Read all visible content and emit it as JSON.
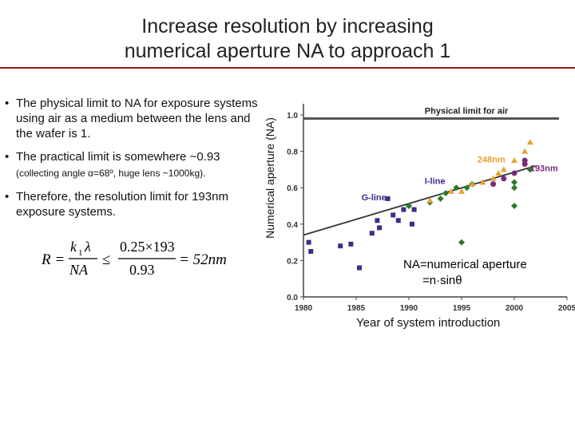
{
  "slide": {
    "title_line1": "Increase resolution by increasing",
    "title_line2": "numerical aperture NA to approach 1",
    "accent_color": "#8b1a1a"
  },
  "bullets": [
    {
      "text": "The physical limit to NA for exposure systems using air as a medium between the lens and the wafer is 1."
    },
    {
      "text": "The  practical limit is somewhere ~0.93"
    },
    {
      "text": "Therefore, the resolution limit for 193nm exposure systems."
    }
  ],
  "bullet_note": "(collecting angle α=68º, huge lens ~1000kg).",
  "formula": {
    "lhs": "R =",
    "k": "k",
    "k_sub": "1",
    "lambda": "λ",
    "denom": "NA",
    "leq": "≤",
    "num": "0.25×193",
    "den2": "0.93",
    "result": "= 52nm"
  },
  "y_axis_label": "Numerical aperture (NA)",
  "x_axis_label": "Year of system introduction",
  "na_note_line1": "NA=numerical aperture",
  "na_note_line2": "=n·sinθ",
  "chart_data": {
    "type": "scatter",
    "title": "",
    "xlabel": "Year of system introduction",
    "ylabel": "Numerical aperture (NA)",
    "xlim": [
      1980,
      2005
    ],
    "ylim": [
      0.0,
      1.0
    ],
    "x_ticks": [
      "1980",
      "1985",
      "1990",
      "1995",
      "2000",
      "2005"
    ],
    "y_ticks": [
      "0.0",
      "0.2",
      "0.4",
      "0.6",
      "0.8",
      "1.0"
    ],
    "grid": false,
    "physical_limit": {
      "label": "Physical limit for air",
      "y": 0.98
    },
    "trend_line": {
      "x": [
        1980,
        2002
      ],
      "y": [
        0.34,
        0.72
      ]
    },
    "series": [
      {
        "name": "G-line",
        "marker": "square",
        "color": "#3a2f8a",
        "x": [
          1980.5,
          1980.7,
          1983.5,
          1984.5,
          1985.3,
          1986.5,
          1987.0,
          1987.2,
          1988.0,
          1988.5,
          1989.0,
          1989.5,
          1990.3,
          1990.5
        ],
        "y": [
          0.3,
          0.25,
          0.28,
          0.29,
          0.16,
          0.35,
          0.42,
          0.38,
          0.54,
          0.45,
          0.42,
          0.48,
          0.4,
          0.48
        ]
      },
      {
        "name": "I-line",
        "marker": "diamond",
        "color": "#2a7a2a",
        "x": [
          1990.0,
          1992.0,
          1993.0,
          1993.5,
          1994.5,
          1995.5,
          1996.0,
          2000.0,
          2000.0,
          2001.5,
          2000.0,
          1995.0
        ],
        "y": [
          0.5,
          0.52,
          0.54,
          0.57,
          0.6,
          0.6,
          0.62,
          0.63,
          0.6,
          0.7,
          0.5,
          0.3
        ]
      },
      {
        "name": "248nm",
        "marker": "triangle",
        "color": "#e8a030",
        "x": [
          1995.0,
          1996.0,
          1997.0,
          1998.0,
          1998.5,
          1999.0,
          2000.0,
          2001.0,
          2001.5,
          1992.0,
          1994.0
        ],
        "y": [
          0.58,
          0.62,
          0.63,
          0.65,
          0.68,
          0.7,
          0.75,
          0.8,
          0.85,
          0.53,
          0.58
        ]
      },
      {
        "name": "193nm",
        "marker": "circle",
        "color": "#7a2a7a",
        "x": [
          1998.0,
          1999.0,
          2000.0,
          2001.0,
          2001.0
        ],
        "y": [
          0.62,
          0.65,
          0.68,
          0.73,
          0.75
        ]
      }
    ]
  }
}
